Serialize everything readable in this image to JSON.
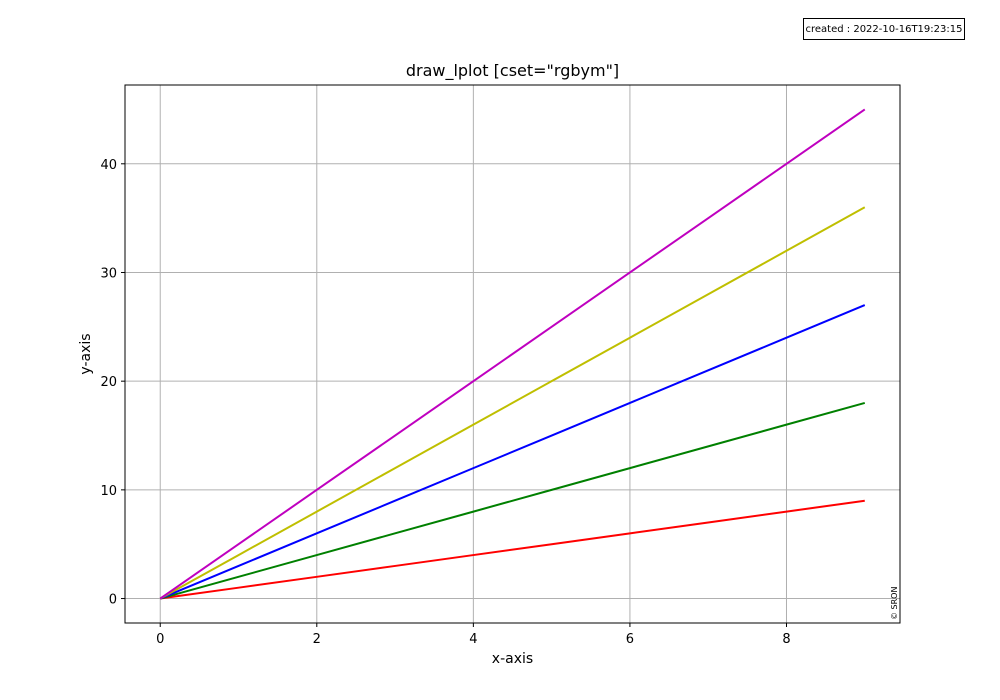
{
  "created_stamp": "created : 2022-10-16T19:23:15",
  "copyright": "© SRON",
  "chart_data": {
    "type": "line",
    "title": "draw_lplot [cset=\"rgbym\"]",
    "xlabel": "x-axis",
    "ylabel": "y-axis",
    "xlim": [
      -0.45,
      9.45
    ],
    "ylim": [
      -2.25,
      47.25
    ],
    "xticks": [
      0,
      2,
      4,
      6,
      8
    ],
    "yticks": [
      0,
      10,
      20,
      30,
      40
    ],
    "grid": true,
    "x": [
      0,
      1,
      2,
      3,
      4,
      5,
      6,
      7,
      8,
      9
    ],
    "series": [
      {
        "color": "#ff0000",
        "values": [
          0,
          1,
          2,
          3,
          4,
          5,
          6,
          7,
          8,
          9
        ]
      },
      {
        "color": "#008000",
        "values": [
          0,
          2,
          4,
          6,
          8,
          10,
          12,
          14,
          16,
          18
        ]
      },
      {
        "color": "#0000ff",
        "values": [
          0,
          3,
          6,
          9,
          12,
          15,
          18,
          21,
          24,
          27
        ]
      },
      {
        "color": "#bfbf00",
        "values": [
          0,
          4,
          8,
          12,
          16,
          20,
          24,
          28,
          32,
          36
        ]
      },
      {
        "color": "#bf00bf",
        "values": [
          0,
          5,
          10,
          15,
          20,
          25,
          30,
          35,
          40,
          45
        ]
      }
    ]
  }
}
